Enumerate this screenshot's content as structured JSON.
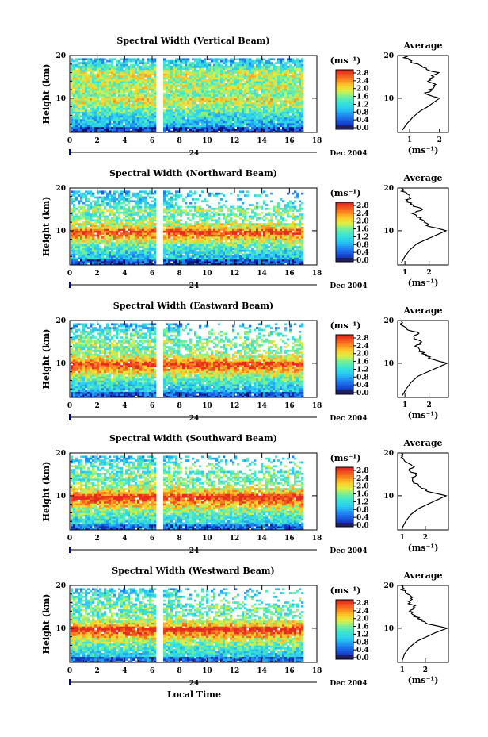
{
  "figure": {
    "bottom_label": "Local Time",
    "colorbar_unit": "(ms⁻¹)",
    "average_unit": "(ms⁻¹)",
    "average_title": "Average",
    "y_label": "Height (km)",
    "date_label": "Dec 2004",
    "day_label": "24"
  },
  "chart_data": [
    {
      "type": "heatmap",
      "title": "Spectral Width (Vertical Beam)",
      "xlabel": "",
      "ylabel": "Height (km)",
      "x_ticks": [
        "0",
        "2",
        "4",
        "6",
        "8",
        "10",
        "12",
        "14",
        "16",
        "18"
      ],
      "y_ticks": [
        "10",
        "20"
      ],
      "xlim": [
        0,
        18
      ],
      "ylim": [
        2,
        20
      ],
      "data_gap": [
        6.2,
        6.8
      ],
      "colorbar": {
        "unit": "(ms⁻¹)",
        "ticks": [
          "2.8",
          "2.4",
          "2.0",
          "1.6",
          "1.2",
          "0.8",
          "0.4",
          "0.0"
        ],
        "range": [
          0,
          2.8
        ]
      },
      "average_profile": {
        "title": "Average",
        "xlabel": "(ms⁻¹)",
        "x_ticks": [
          "1",
          "2"
        ],
        "xlim": [
          0.6,
          2.3
        ],
        "y_ticks": [
          "10",
          "20"
        ],
        "height": [
          2.5,
          4,
          5.5,
          7,
          8,
          9,
          10,
          10.5,
          11,
          12,
          13,
          14,
          15,
          16,
          17,
          18,
          19,
          20
        ],
        "value": [
          0.75,
          0.9,
          1.1,
          1.35,
          1.6,
          1.8,
          2.0,
          1.75,
          1.55,
          1.7,
          1.85,
          1.6,
          1.8,
          1.9,
          1.5,
          1.2,
          0.95,
          0.8
        ]
      }
    },
    {
      "type": "heatmap",
      "title": "Spectral Width (Northward Beam)",
      "xlabel": "",
      "ylabel": "Height (km)",
      "x_ticks": [
        "0",
        "2",
        "4",
        "6",
        "8",
        "10",
        "12",
        "14",
        "16",
        "18"
      ],
      "y_ticks": [
        "10",
        "20"
      ],
      "xlim": [
        0,
        18
      ],
      "ylim": [
        2,
        20
      ],
      "data_gap": [
        6.2,
        6.8
      ],
      "colorbar": {
        "unit": "(ms⁻¹)",
        "ticks": [
          "2.8",
          "2.4",
          "2.0",
          "1.6",
          "1.2",
          "0.8",
          "0.4",
          "0.0"
        ],
        "range": [
          0,
          2.8
        ]
      },
      "average_profile": {
        "title": "Average",
        "xlabel": "(ms⁻¹)",
        "x_ticks": [
          "1",
          "2"
        ],
        "xlim": [
          0.7,
          2.8
        ],
        "y_ticks": [
          "10",
          "20"
        ],
        "height": [
          2.5,
          4,
          5.5,
          7,
          8,
          9,
          10,
          10.5,
          11,
          12,
          13,
          14,
          15,
          16,
          17,
          18,
          19,
          20
        ],
        "value": [
          0.85,
          1.0,
          1.2,
          1.5,
          1.9,
          2.3,
          2.7,
          2.4,
          2.0,
          1.8,
          1.6,
          1.4,
          1.7,
          1.3,
          1.1,
          1.2,
          0.95,
          0.85
        ]
      }
    },
    {
      "type": "heatmap",
      "title": "Spectral Width (Eastward Beam)",
      "xlabel": "",
      "ylabel": "Height (km)",
      "x_ticks": [
        "0",
        "2",
        "4",
        "6",
        "8",
        "10",
        "12",
        "14",
        "16",
        "18"
      ],
      "y_ticks": [
        "10",
        "20"
      ],
      "xlim": [
        0,
        18
      ],
      "ylim": [
        2,
        20
      ],
      "data_gap": [
        6.2,
        6.8
      ],
      "colorbar": {
        "unit": "(ms⁻¹)",
        "ticks": [
          "2.8",
          "2.4",
          "2.0",
          "1.6",
          "1.2",
          "0.8",
          "0.4",
          "0.0"
        ],
        "range": [
          0,
          2.8
        ]
      },
      "average_profile": {
        "title": "Average",
        "xlabel": "(ms⁻¹)",
        "x_ticks": [
          "1",
          "2"
        ],
        "xlim": [
          0.7,
          2.8
        ],
        "y_ticks": [
          "10",
          "20"
        ],
        "height": [
          2.5,
          4,
          5.5,
          7,
          8,
          9,
          10,
          10.5,
          11,
          12,
          13,
          14,
          15,
          16,
          17,
          18,
          19,
          20
        ],
        "value": [
          0.9,
          1.05,
          1.25,
          1.55,
          1.95,
          2.35,
          2.75,
          2.4,
          2.1,
          1.85,
          1.6,
          1.45,
          1.75,
          1.35,
          1.55,
          1.1,
          0.9,
          0.85
        ]
      }
    },
    {
      "type": "heatmap",
      "title": "Spectral Width (Southward Beam)",
      "xlabel": "",
      "ylabel": "Height (km)",
      "x_ticks": [
        "0",
        "2",
        "4",
        "6",
        "8",
        "10",
        "12",
        "14",
        "16",
        "18"
      ],
      "y_ticks": [
        "10",
        "20"
      ],
      "xlim": [
        0,
        18
      ],
      "ylim": [
        2,
        20
      ],
      "data_gap": [
        6.2,
        6.8
      ],
      "colorbar": {
        "unit": "(ms⁻¹)",
        "ticks": [
          "2.8",
          "2.4",
          "2.0",
          "1.6",
          "1.2",
          "0.8",
          "0.4",
          "0.0"
        ],
        "range": [
          0,
          2.8
        ]
      },
      "average_profile": {
        "title": "Average",
        "xlabel": "(ms⁻¹)",
        "x_ticks": [
          "1",
          "2"
        ],
        "xlim": [
          0.8,
          3.0
        ],
        "y_ticks": [
          "10",
          "20"
        ],
        "height": [
          2.5,
          4,
          5.5,
          7,
          8,
          9,
          10,
          10.5,
          11,
          12,
          13,
          14,
          15,
          16,
          17,
          18,
          19,
          20
        ],
        "value": [
          1.0,
          1.15,
          1.35,
          1.7,
          2.1,
          2.5,
          2.9,
          2.5,
          2.1,
          1.85,
          1.55,
          1.4,
          1.6,
          1.3,
          1.5,
          1.2,
          1.0,
          0.95
        ]
      }
    },
    {
      "type": "heatmap",
      "title": "Spectral Width (Westward Beam)",
      "xlabel": "Local Time",
      "ylabel": "Height (km)",
      "x_ticks": [
        "0",
        "2",
        "4",
        "6",
        "8",
        "10",
        "12",
        "14",
        "16",
        "18"
      ],
      "y_ticks": [
        "10",
        "20"
      ],
      "xlim": [
        0,
        18
      ],
      "ylim": [
        2,
        20
      ],
      "data_gap": [
        6.2,
        6.8
      ],
      "colorbar": {
        "unit": "(ms⁻¹)",
        "ticks": [
          "2.8",
          "2.4",
          "2.0",
          "1.6",
          "1.2",
          "0.8",
          "0.4",
          "0.0"
        ],
        "range": [
          0,
          2.8
        ]
      },
      "average_profile": {
        "title": "Average",
        "xlabel": "(ms⁻¹)",
        "x_ticks": [
          "1",
          "2"
        ],
        "xlim": [
          0.8,
          3.0
        ],
        "y_ticks": [
          "10",
          "20"
        ],
        "height": [
          2.5,
          4,
          5.5,
          7,
          8,
          9,
          10,
          10.5,
          11,
          12,
          13,
          14,
          15,
          16,
          17,
          18,
          19,
          20
        ],
        "value": [
          1.0,
          1.1,
          1.3,
          1.65,
          2.05,
          2.45,
          2.95,
          2.55,
          2.1,
          1.8,
          1.5,
          1.35,
          1.55,
          1.25,
          1.45,
          1.2,
          1.05,
          0.95
        ]
      }
    }
  ]
}
